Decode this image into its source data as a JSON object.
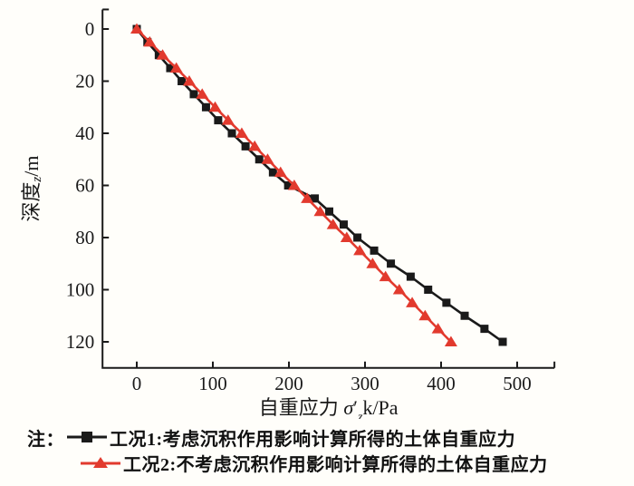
{
  "figure": {
    "bg_color": "#fffefa",
    "axis_color": "#1a1a1a",
    "note_label": "注：",
    "legend": [
      {
        "marker": "square",
        "color": "#1a1a1a",
        "label": "工况1:考虑沉积作用影响计算所得的土体自重应力"
      },
      {
        "marker": "triangle",
        "color": "#e23a2e",
        "label": "工况2:不考虑沉积作用影响计算所得的土体自重应力"
      }
    ]
  },
  "chart_data": {
    "type": "line",
    "title": "",
    "xlabel": "自重应力 σ′zk/Pa",
    "ylabel": "深度z/m",
    "xlabel_parts": {
      "prefix": "自重应力 ",
      "symbol": "σ",
      "prime": "′",
      "subscript": "z",
      "suffix": "k/Pa"
    },
    "ylabel_parts": {
      "prefix": "深度",
      "subscript": "z",
      "suffix": "/m"
    },
    "x_ticks": [
      0,
      100,
      200,
      300,
      400,
      500
    ],
    "y_ticks": [
      0,
      20,
      40,
      60,
      80,
      100,
      120
    ],
    "xlim": [
      -45,
      549
    ],
    "ylim": [
      -7.5,
      130
    ],
    "y_axis_inverted": true,
    "grid": false,
    "legend_position": "below",
    "depths": [
      0,
      5,
      10,
      15,
      20,
      25,
      30,
      35,
      40,
      45,
      50,
      55,
      60,
      65,
      70,
      75,
      80,
      85,
      90,
      95,
      100,
      105,
      110,
      115,
      120
    ],
    "series": [
      {
        "name": "工况1",
        "marker": "square",
        "color": "#1a1a1a",
        "values": [
          0,
          14,
          29,
          44,
          59,
          75,
          91,
          107,
          125,
          143,
          161,
          179,
          199,
          234,
          253,
          272,
          290,
          312,
          334,
          360,
          383,
          407,
          431,
          457,
          481
        ]
      },
      {
        "name": "工况2",
        "marker": "triangle",
        "color": "#e23a2e",
        "values": [
          0,
          17,
          34,
          52,
          69,
          86,
          103,
          120,
          138,
          155,
          172,
          189,
          207,
          224,
          241,
          258,
          276,
          293,
          310,
          327,
          345,
          362,
          379,
          396,
          413
        ]
      }
    ]
  }
}
